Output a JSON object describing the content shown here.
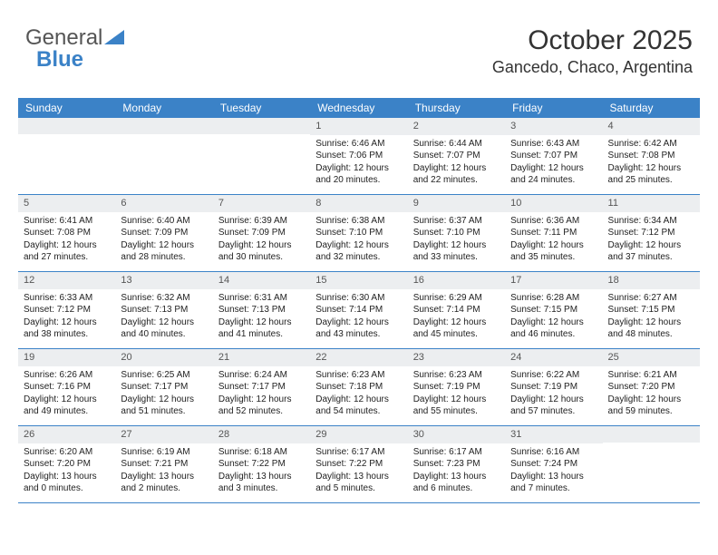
{
  "logo": {
    "word1": "General",
    "word2": "Blue"
  },
  "title": "October 2025",
  "location": "Gancedo, Chaco, Argentina",
  "colors": {
    "header_bg": "#3b82c7",
    "daynum_bg": "#eceef0",
    "text": "#222222",
    "title_text": "#333333",
    "border": "#3b82c7"
  },
  "day_headers": [
    "Sunday",
    "Monday",
    "Tuesday",
    "Wednesday",
    "Thursday",
    "Friday",
    "Saturday"
  ],
  "weeks": [
    [
      {
        "n": "",
        "sr": "",
        "ss": "",
        "dl": ""
      },
      {
        "n": "",
        "sr": "",
        "ss": "",
        "dl": ""
      },
      {
        "n": "",
        "sr": "",
        "ss": "",
        "dl": ""
      },
      {
        "n": "1",
        "sr": "Sunrise: 6:46 AM",
        "ss": "Sunset: 7:06 PM",
        "dl": "Daylight: 12 hours and 20 minutes."
      },
      {
        "n": "2",
        "sr": "Sunrise: 6:44 AM",
        "ss": "Sunset: 7:07 PM",
        "dl": "Daylight: 12 hours and 22 minutes."
      },
      {
        "n": "3",
        "sr": "Sunrise: 6:43 AM",
        "ss": "Sunset: 7:07 PM",
        "dl": "Daylight: 12 hours and 24 minutes."
      },
      {
        "n": "4",
        "sr": "Sunrise: 6:42 AM",
        "ss": "Sunset: 7:08 PM",
        "dl": "Daylight: 12 hours and 25 minutes."
      }
    ],
    [
      {
        "n": "5",
        "sr": "Sunrise: 6:41 AM",
        "ss": "Sunset: 7:08 PM",
        "dl": "Daylight: 12 hours and 27 minutes."
      },
      {
        "n": "6",
        "sr": "Sunrise: 6:40 AM",
        "ss": "Sunset: 7:09 PM",
        "dl": "Daylight: 12 hours and 28 minutes."
      },
      {
        "n": "7",
        "sr": "Sunrise: 6:39 AM",
        "ss": "Sunset: 7:09 PM",
        "dl": "Daylight: 12 hours and 30 minutes."
      },
      {
        "n": "8",
        "sr": "Sunrise: 6:38 AM",
        "ss": "Sunset: 7:10 PM",
        "dl": "Daylight: 12 hours and 32 minutes."
      },
      {
        "n": "9",
        "sr": "Sunrise: 6:37 AM",
        "ss": "Sunset: 7:10 PM",
        "dl": "Daylight: 12 hours and 33 minutes."
      },
      {
        "n": "10",
        "sr": "Sunrise: 6:36 AM",
        "ss": "Sunset: 7:11 PM",
        "dl": "Daylight: 12 hours and 35 minutes."
      },
      {
        "n": "11",
        "sr": "Sunrise: 6:34 AM",
        "ss": "Sunset: 7:12 PM",
        "dl": "Daylight: 12 hours and 37 minutes."
      }
    ],
    [
      {
        "n": "12",
        "sr": "Sunrise: 6:33 AM",
        "ss": "Sunset: 7:12 PM",
        "dl": "Daylight: 12 hours and 38 minutes."
      },
      {
        "n": "13",
        "sr": "Sunrise: 6:32 AM",
        "ss": "Sunset: 7:13 PM",
        "dl": "Daylight: 12 hours and 40 minutes."
      },
      {
        "n": "14",
        "sr": "Sunrise: 6:31 AM",
        "ss": "Sunset: 7:13 PM",
        "dl": "Daylight: 12 hours and 41 minutes."
      },
      {
        "n": "15",
        "sr": "Sunrise: 6:30 AM",
        "ss": "Sunset: 7:14 PM",
        "dl": "Daylight: 12 hours and 43 minutes."
      },
      {
        "n": "16",
        "sr": "Sunrise: 6:29 AM",
        "ss": "Sunset: 7:14 PM",
        "dl": "Daylight: 12 hours and 45 minutes."
      },
      {
        "n": "17",
        "sr": "Sunrise: 6:28 AM",
        "ss": "Sunset: 7:15 PM",
        "dl": "Daylight: 12 hours and 46 minutes."
      },
      {
        "n": "18",
        "sr": "Sunrise: 6:27 AM",
        "ss": "Sunset: 7:15 PM",
        "dl": "Daylight: 12 hours and 48 minutes."
      }
    ],
    [
      {
        "n": "19",
        "sr": "Sunrise: 6:26 AM",
        "ss": "Sunset: 7:16 PM",
        "dl": "Daylight: 12 hours and 49 minutes."
      },
      {
        "n": "20",
        "sr": "Sunrise: 6:25 AM",
        "ss": "Sunset: 7:17 PM",
        "dl": "Daylight: 12 hours and 51 minutes."
      },
      {
        "n": "21",
        "sr": "Sunrise: 6:24 AM",
        "ss": "Sunset: 7:17 PM",
        "dl": "Daylight: 12 hours and 52 minutes."
      },
      {
        "n": "22",
        "sr": "Sunrise: 6:23 AM",
        "ss": "Sunset: 7:18 PM",
        "dl": "Daylight: 12 hours and 54 minutes."
      },
      {
        "n": "23",
        "sr": "Sunrise: 6:23 AM",
        "ss": "Sunset: 7:19 PM",
        "dl": "Daylight: 12 hours and 55 minutes."
      },
      {
        "n": "24",
        "sr": "Sunrise: 6:22 AM",
        "ss": "Sunset: 7:19 PM",
        "dl": "Daylight: 12 hours and 57 minutes."
      },
      {
        "n": "25",
        "sr": "Sunrise: 6:21 AM",
        "ss": "Sunset: 7:20 PM",
        "dl": "Daylight: 12 hours and 59 minutes."
      }
    ],
    [
      {
        "n": "26",
        "sr": "Sunrise: 6:20 AM",
        "ss": "Sunset: 7:20 PM",
        "dl": "Daylight: 13 hours and 0 minutes."
      },
      {
        "n": "27",
        "sr": "Sunrise: 6:19 AM",
        "ss": "Sunset: 7:21 PM",
        "dl": "Daylight: 13 hours and 2 minutes."
      },
      {
        "n": "28",
        "sr": "Sunrise: 6:18 AM",
        "ss": "Sunset: 7:22 PM",
        "dl": "Daylight: 13 hours and 3 minutes."
      },
      {
        "n": "29",
        "sr": "Sunrise: 6:17 AM",
        "ss": "Sunset: 7:22 PM",
        "dl": "Daylight: 13 hours and 5 minutes."
      },
      {
        "n": "30",
        "sr": "Sunrise: 6:17 AM",
        "ss": "Sunset: 7:23 PM",
        "dl": "Daylight: 13 hours and 6 minutes."
      },
      {
        "n": "31",
        "sr": "Sunrise: 6:16 AM",
        "ss": "Sunset: 7:24 PM",
        "dl": "Daylight: 13 hours and 7 minutes."
      },
      {
        "n": "",
        "sr": "",
        "ss": "",
        "dl": ""
      }
    ]
  ]
}
